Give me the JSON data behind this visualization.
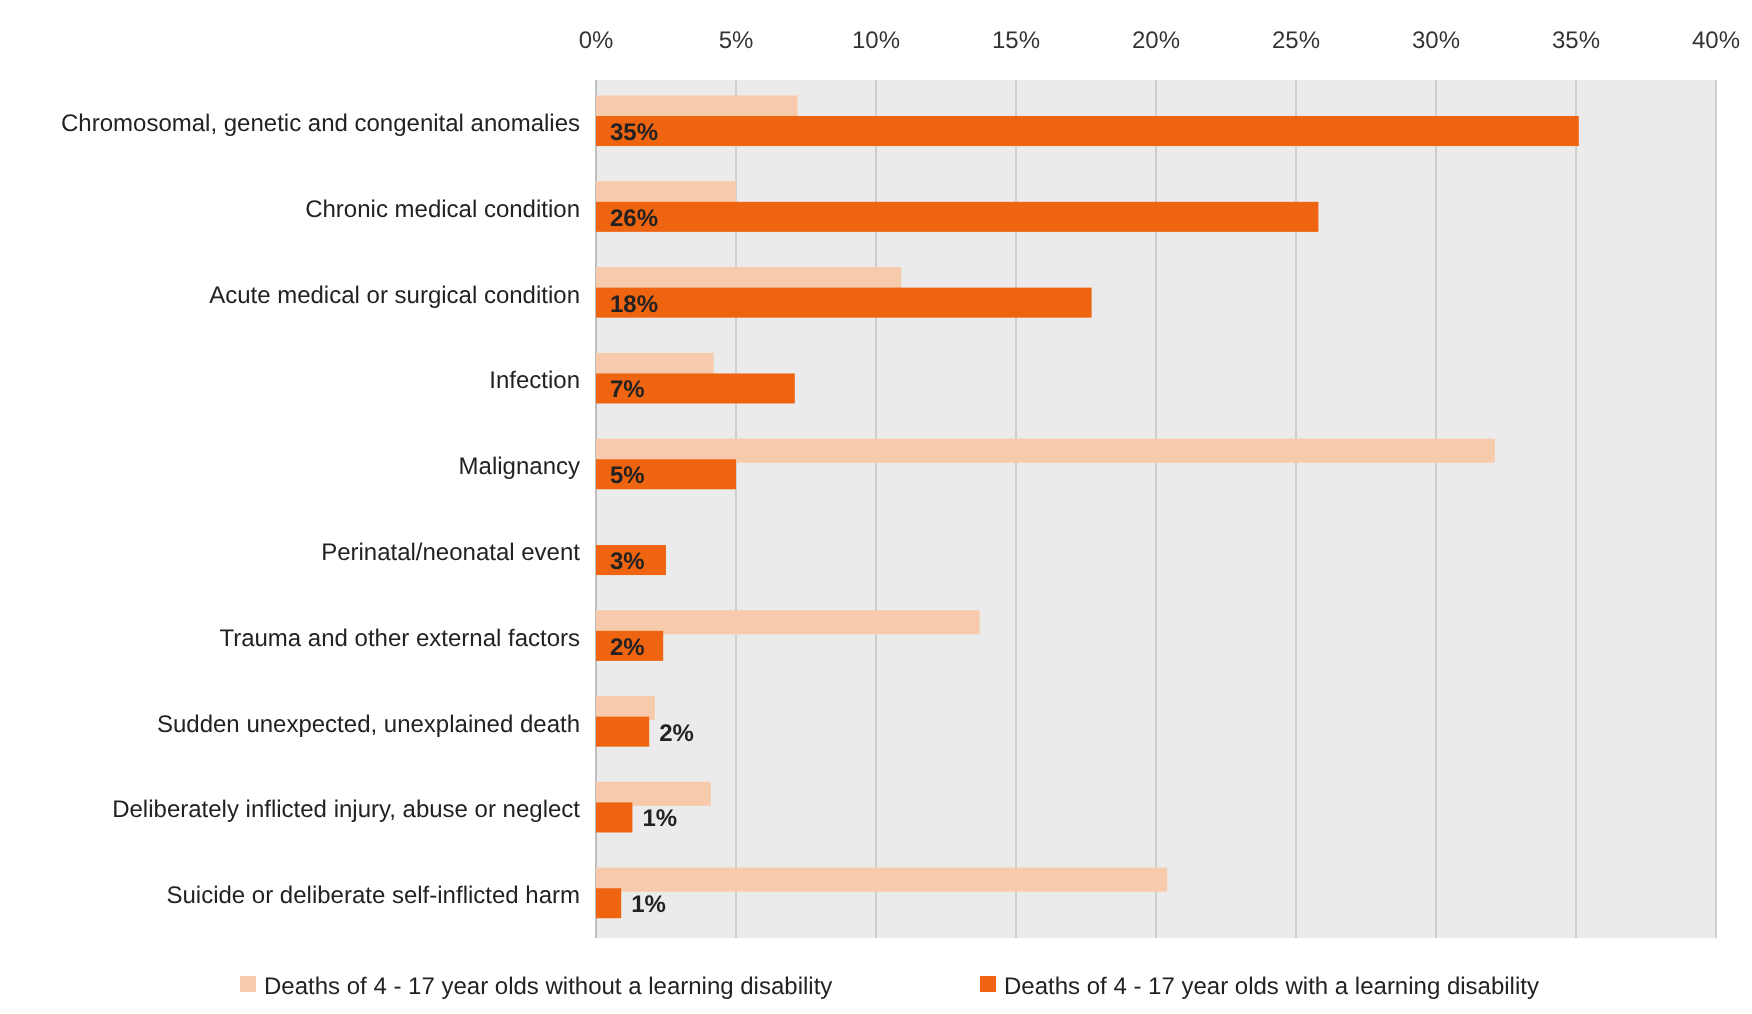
{
  "chart_data": {
    "type": "bar",
    "orientation": "horizontal",
    "categories": [
      "Chromosomal, genetic and congenital anomalies",
      "Chronic medical condition",
      "Acute medical or surgical condition",
      "Infection",
      "Malignancy",
      "Perinatal/neonatal event",
      "Trauma and other external factors",
      "Sudden unexpected, unexplained death",
      "Deliberately inflicted injury, abuse or neglect",
      "Suicide or deliberate self-inflicted harm"
    ],
    "series": [
      {
        "name": "Deaths of 4 - 17 year olds without a learning disability",
        "color": "#f7caab",
        "values": [
          7.2,
          5.0,
          10.9,
          4.2,
          32.1,
          0,
          13.7,
          2.1,
          4.1,
          20.4
        ]
      },
      {
        "name": "Deaths of 4 - 17 year olds with a learning disability",
        "color": "#ee6410",
        "values": [
          35.1,
          25.8,
          17.7,
          7.1,
          5.0,
          2.5,
          2.4,
          1.9,
          1.3,
          0.9
        ],
        "value_labels": [
          "35%",
          "26%",
          "18%",
          "7%",
          "5%",
          "3%",
          "2%",
          "2%",
          "1%",
          "1%"
        ]
      }
    ],
    "xlim": [
      0,
      40
    ],
    "xticks": [
      {
        "value": 0,
        "label": "0%"
      },
      {
        "value": 5,
        "label": "5%"
      },
      {
        "value": 10,
        "label": "10%"
      },
      {
        "value": 15,
        "label": "15%"
      },
      {
        "value": 20,
        "label": "20%"
      },
      {
        "value": 25,
        "label": "25%"
      },
      {
        "value": 30,
        "label": "30%"
      },
      {
        "value": 35,
        "label": "35%"
      },
      {
        "value": 40,
        "label": "40%"
      }
    ],
    "grid": "x",
    "legend": "bottom"
  }
}
